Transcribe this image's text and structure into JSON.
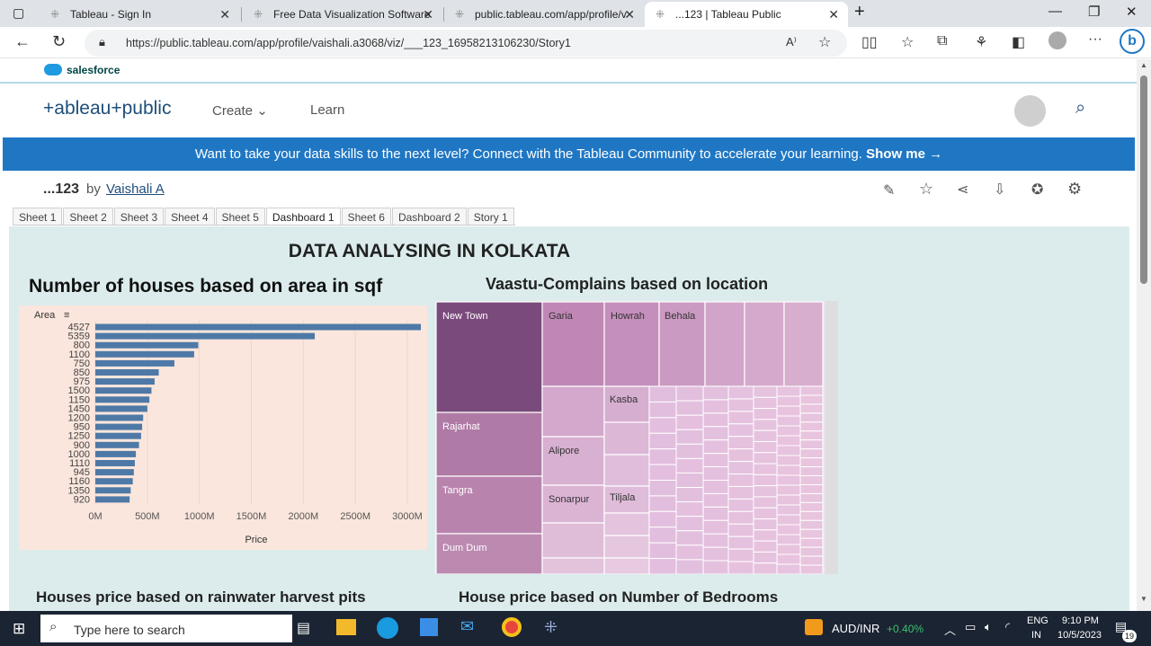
{
  "browser": {
    "tabs": [
      {
        "title": "Tableau - Sign In"
      },
      {
        "title": "Free Data Visualization Software"
      },
      {
        "title": "public.tableau.com/app/profile/v"
      },
      {
        "title": "...123 | Tableau Public"
      }
    ],
    "url": "https://public.tableau.com/app/profile/vaishali.a3068/viz/___123_16958213106230/Story1"
  },
  "site": {
    "salesforce_label": "salesforce",
    "logo": "+ableau+public",
    "nav": {
      "create": "Create",
      "learn": "Learn"
    },
    "banner_text": "Want to take your data skills to the next level? Connect with the Tableau Community to accelerate your learning.",
    "banner_link": "Show me →"
  },
  "viz": {
    "name": "...123",
    "by": "by",
    "author": "Vaishali A",
    "sheet_tabs": [
      "Sheet 1",
      "Sheet 2",
      "Sheet 3",
      "Sheet 4",
      "Sheet 5",
      "Dashboard 1",
      "Sheet 6",
      "Dashboard 2",
      "Story 1"
    ],
    "active_tab": "Dashboard 1"
  },
  "dashboard": {
    "title": "DATA  ANALYSING IN KOLKATA",
    "bar_title": "Number of houses based on area in sqf",
    "treemap_title": "Vaastu-Complains based on location",
    "bottom_left_title": "Houses price based on rainwater harvest pits",
    "bottom_right_title": "House price based on Number of Bedrooms"
  },
  "chart_data": [
    {
      "type": "bar",
      "orientation": "horizontal",
      "ylabel": "Area",
      "xlabel": "Price",
      "categories": [
        "4527",
        "5359",
        "800",
        "1100",
        "750",
        "850",
        "975",
        "1500",
        "1150",
        "1450",
        "1200",
        "950",
        "1250",
        "900",
        "1000",
        "1110",
        "945",
        "1160",
        "1350",
        "920"
      ],
      "values": [
        3130,
        2110,
        990,
        950,
        760,
        610,
        570,
        540,
        520,
        500,
        460,
        450,
        440,
        420,
        390,
        380,
        370,
        360,
        340,
        330
      ],
      "value_unit": "M",
      "xticks": [
        "0M",
        "500M",
        "1000M",
        "1500M",
        "2000M",
        "2500M",
        "3000M"
      ],
      "xlim": [
        0,
        3000
      ],
      "bar_color": "#4e79a7",
      "background": "#fae6dc"
    },
    {
      "type": "treemap",
      "labels": [
        "New Town",
        "Garia",
        "Howrah",
        "Behala",
        "Kasba",
        "Rajarhat",
        "Alipore",
        "Sonarpur",
        "Tiljala",
        "Tangra",
        "Dum Dum"
      ],
      "colors": {
        "max": "#7b4a7c",
        "min": "#ecc8e6"
      }
    }
  ],
  "taskbar": {
    "search_placeholder": "Type here to search",
    "currency": "AUD/INR",
    "change": "+0.40%",
    "lang1": "ENG",
    "lang2": "IN",
    "time": "9:10 PM",
    "date": "10/5/2023",
    "notif": "19"
  }
}
